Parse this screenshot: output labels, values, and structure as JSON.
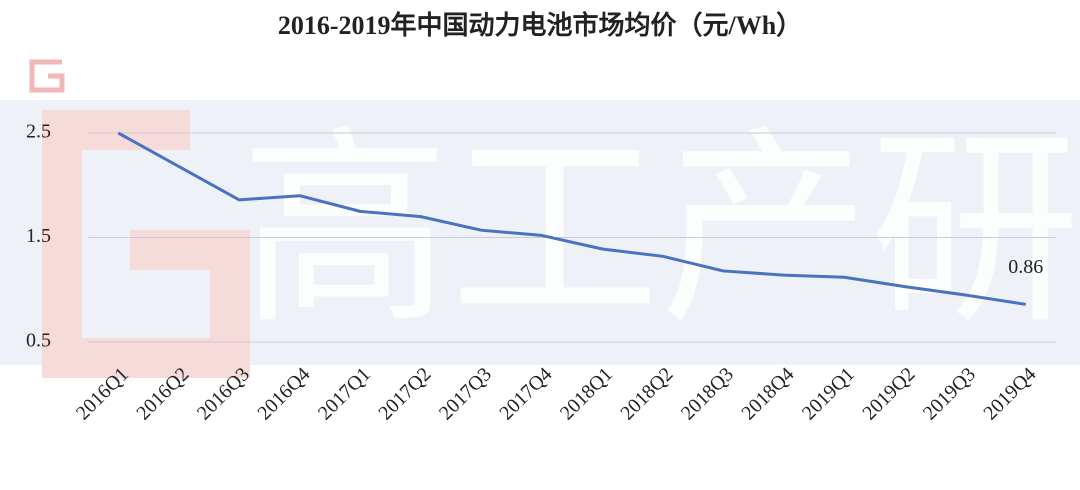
{
  "chart_data": {
    "type": "line",
    "title": "2016-2019年中国动力电池市场均价（元/Wh）",
    "watermark": "高工产研",
    "categories": [
      "2016Q1",
      "2016Q2",
      "2016Q3",
      "2016Q4",
      "2017Q1",
      "2017Q2",
      "2017Q3",
      "2017Q4",
      "2018Q1",
      "2018Q2",
      "2018Q3",
      "2018Q4",
      "2019Q1",
      "2019Q2",
      "2019Q3",
      "2019Q4"
    ],
    "values": [
      2.5,
      2.18,
      1.86,
      1.9,
      1.75,
      1.7,
      1.57,
      1.52,
      1.39,
      1.32,
      1.18,
      1.14,
      1.12,
      1.03,
      0.95,
      0.86
    ],
    "value_labels": [
      null,
      null,
      null,
      null,
      null,
      null,
      null,
      null,
      null,
      null,
      null,
      null,
      null,
      null,
      null,
      "0.86"
    ],
    "color": "#4a72c0",
    "ylim": [
      0.5,
      2.5
    ],
    "yticks": [
      0.5,
      1.5,
      2.5
    ],
    "grid": true
  }
}
